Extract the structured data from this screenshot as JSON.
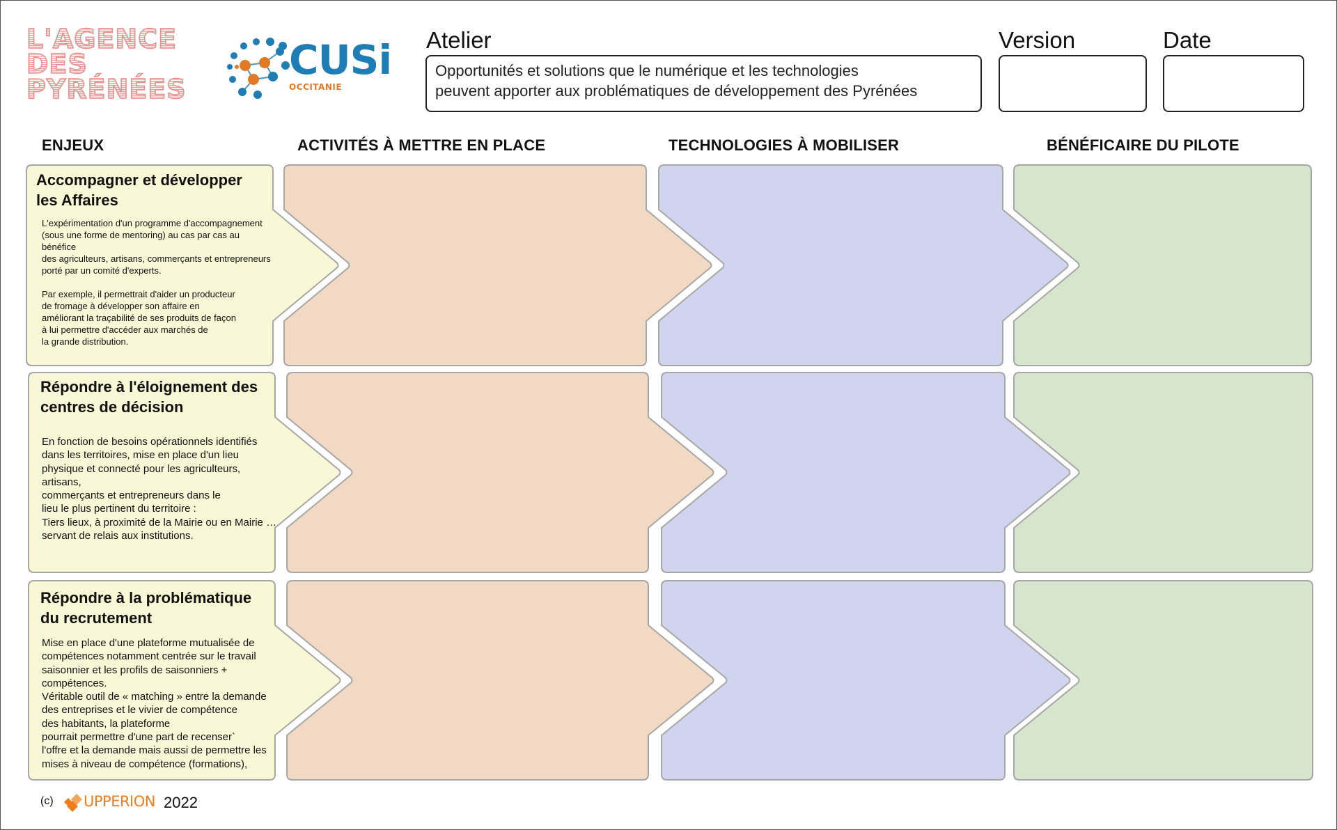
{
  "logos": {
    "agence": [
      "L'AGENCE",
      "DES",
      "PYRÉNÉES"
    ],
    "cusi": {
      "name": "CUSi",
      "region": "OCCITANIE"
    }
  },
  "header": {
    "atelier_label": "Atelier",
    "atelier_text": "Opportunités et solutions que le numérique et les technologies\npeuvent apporter aux problématiques de développement des Pyrénées",
    "version_label": "Version",
    "version_value": "",
    "date_label": "Date",
    "date_value": ""
  },
  "columns": {
    "enjeux": "ENJEUX",
    "activites": "ACTIVITÉS À METTRE EN PLACE",
    "technologies": "TECHNOLOGIES À MOBILISER",
    "beneficiaire": "BÉNÉFICAIRE DU PILOTE"
  },
  "rows": [
    {
      "title": "Accompagner et développer\nles Affaires",
      "description": "L'expérimentation d'un programme d'accompagnement\n(sous une forme de mentoring) au cas par cas au bénéfice\ndes agriculteurs, artisans, commerçants et entrepreneurs\nporté par un comité d'experts.\n\nPar exemple, il permettrait d'aider un producteur\nde fromage à développer son affaire en\naméliorant la traçabilité de ses produits de façon\nà lui permettre d'accéder aux marchés de\nla grande distribution.",
      "activites": "",
      "technologies": "",
      "beneficiaire": ""
    },
    {
      "title": "Répondre à l'éloignement des\ncentres de décision",
      "description": "En fonction de besoins opérationnels identifiés\ndans les territoires, mise en place d'un lieu\nphysique et connecté pour les agriculteurs, artisans,\ncommerçants et entrepreneurs dans le\nlieu le plus pertinent du territoire :\nTiers lieux, à proximité de la Mairie ou en Mairie …\nservant de relais aux institutions.",
      "activites": "",
      "technologies": "",
      "beneficiaire": ""
    },
    {
      "title": "Répondre à la problématique\ndu recrutement",
      "description": "Mise en place d'une plateforme mutualisée de\ncompétences notamment centrée sur le travail\nsaisonnier et les profils de saisonniers + compétences.\nVéritable outil de « matching » entre la demande\ndes entreprises et le vivier de compétence\ndes habitants, la plateforme\npourrait permettre d'une part de recenser`\nl'offre et la demande mais aussi de permettre les\nmises à niveau de compétence (formations),",
      "activites": "",
      "technologies": "",
      "beneficiaire": ""
    }
  ],
  "colors": {
    "enjeux": "#f8f7d6",
    "activites": "#f2d9c3",
    "technologies": "#d1d4ee",
    "beneficiaire": "#d6e5cb",
    "border": "#a6a6a6"
  },
  "footer": {
    "copyright": "(c)",
    "brand": "UPPERION",
    "year": "2022"
  }
}
